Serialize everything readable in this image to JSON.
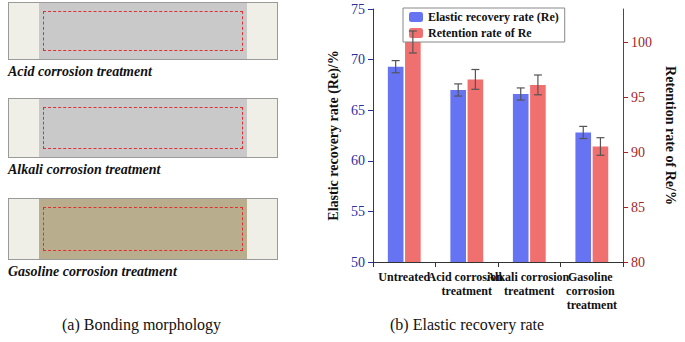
{
  "panel_a": {
    "caption": "(a) Bonding morphology",
    "labels": [
      "Acid corrosion treatment",
      "Alkali corrosion treatment",
      "Gasoline corrosion treatment"
    ]
  },
  "panel_b": {
    "caption": "(b) Elastic recovery rate"
  },
  "chart_data": {
    "type": "bar",
    "categories": [
      "Untreated",
      "Acid corrosion treatment",
      "Alkali corrosion treatment",
      "Gasoline corrosion treatment"
    ],
    "y_label": "Elastic recovery rate (Re)/%",
    "y2_label": "Retention rate of Re/%",
    "ylim": [
      50,
      75
    ],
    "yticks": [
      50,
      55,
      60,
      65,
      70,
      75
    ],
    "y2lim": [
      80,
      103
    ],
    "y2ticks": [
      80,
      85,
      90,
      95,
      100
    ],
    "legend": "top",
    "series": [
      {
        "name": "Elastic recovery rate (Re)",
        "color": "#6673f2",
        "values": [
          69.3,
          67.0,
          66.6,
          62.8
        ],
        "errors": [
          0.6,
          0.6,
          0.6,
          0.6
        ]
      },
      {
        "name": "Retention rate of Re",
        "color": "#f07070",
        "values": [
          100.0,
          96.6,
          96.1,
          90.5
        ],
        "errors": [
          1.0,
          0.9,
          0.9,
          0.8
        ],
        "axis": "y2"
      }
    ]
  }
}
